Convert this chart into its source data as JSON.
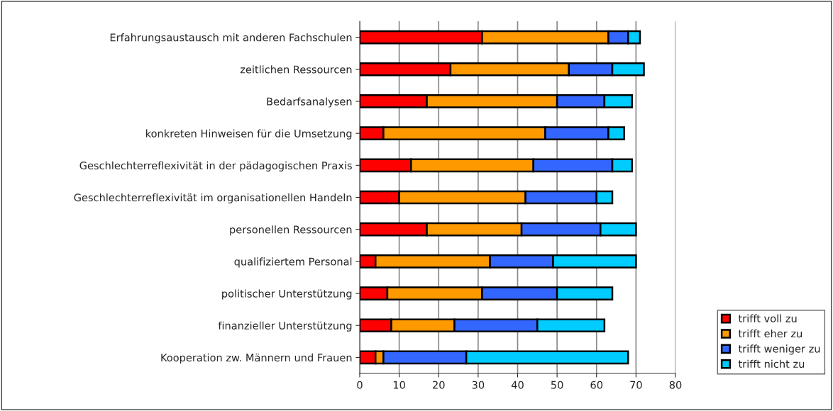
{
  "chart_data": {
    "type": "bar",
    "orientation": "horizontal",
    "stacked": true,
    "categories": [
      "Erfahrungsaustausch mit anderen Fachschulen",
      "zeitlichen Ressourcen",
      "Bedarfsanalysen",
      "konkreten Hinweisen für die Umsetzung",
      "Geschlechterreflexivität in der pädagogischen Praxis",
      "Geschlechterreflexivität im organisationellen Handeln",
      "personellen Ressourcen",
      "qualifiziertem Personal",
      "politischer Unterstützung",
      "finanzieller Unterstützung",
      "Kooperation zw. Männern und Frauen"
    ],
    "series": [
      {
        "name": "trifft voll zu",
        "color": "#ff0000",
        "values": [
          31,
          23,
          17,
          6,
          13,
          10,
          17,
          4,
          7,
          8,
          4
        ]
      },
      {
        "name": "trifft eher zu",
        "color": "#ff9900",
        "values": [
          32,
          30,
          33,
          41,
          31,
          32,
          24,
          29,
          24,
          16,
          2
        ]
      },
      {
        "name": "trifft weniger zu",
        "color": "#3366ff",
        "values": [
          5,
          11,
          12,
          16,
          20,
          18,
          20,
          16,
          19,
          21,
          21
        ]
      },
      {
        "name": "trifft nicht zu",
        "color": "#00ccff",
        "values": [
          3,
          8,
          7,
          4,
          5,
          4,
          9,
          21,
          14,
          17,
          41
        ]
      }
    ],
    "xlim": [
      0,
      80
    ],
    "xticks": [
      0,
      10,
      20,
      30,
      40,
      50,
      60,
      70,
      80
    ],
    "grid": "x",
    "legend": "bottom right"
  }
}
